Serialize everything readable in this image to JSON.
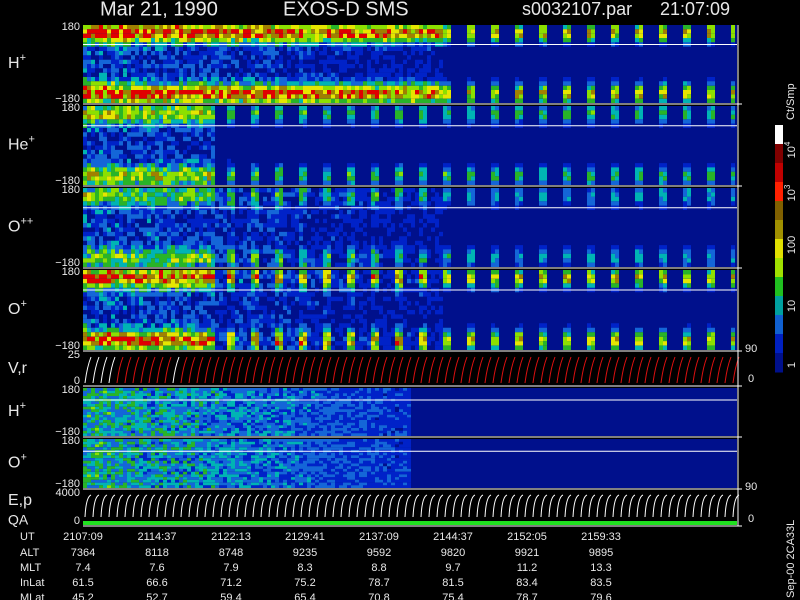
{
  "header": {
    "date": "Mar 21, 1990",
    "mission": "EXOS-D SMS",
    "file": "s0032107.par",
    "time": "21:07:09"
  },
  "panels": [
    {
      "name": "H",
      "sup": "+",
      "ymax": "180",
      "ymin": "−180"
    },
    {
      "name": "He",
      "sup": "+",
      "ymax": "180",
      "ymin": "−180"
    },
    {
      "name": "O",
      "sup": "++",
      "ymax": "180",
      "ymin": "−180"
    },
    {
      "name": "O",
      "sup": "+",
      "ymax": "180",
      "ymin": "−180"
    },
    {
      "name": "V,r",
      "ymax": "25",
      "ymin": "0",
      "right": [
        "90",
        "0"
      ]
    },
    {
      "name": "H",
      "sup": "+",
      "ymax": "180",
      "ymin": "−180"
    },
    {
      "name": "O",
      "sup": "+",
      "ymax": "180",
      "ymin": "−180"
    },
    {
      "name": "E,p",
      "name2": "QA",
      "ymax": "4000",
      "ymin": "0",
      "right": [
        "90",
        "0"
      ]
    }
  ],
  "colorbar": {
    "unit": "Ct/Smp",
    "ticks": [
      {
        "base": "10",
        "exp": "4"
      },
      {
        "base": "10",
        "exp": "3"
      },
      {
        "base": "100"
      },
      {
        "base": "10"
      },
      {
        "base": "1"
      }
    ]
  },
  "table": {
    "rows": [
      {
        "label": "UT",
        "cells": [
          "2107:09",
          "2114:37",
          "2122:13",
          "2129:41",
          "2137:09",
          "2144:37",
          "2152:05",
          "2159:33"
        ]
      },
      {
        "label": "ALT",
        "cells": [
          "7364",
          "8118",
          "8748",
          "9235",
          "9592",
          "9820",
          "9921",
          "9895"
        ]
      },
      {
        "label": "MLT",
        "cells": [
          "7.4",
          "7.6",
          "7.9",
          "8.3",
          "8.8",
          "9.7",
          "11.2",
          "13.3"
        ]
      },
      {
        "label": "InLat",
        "cells": [
          "61.5",
          "66.6",
          "71.2",
          "75.2",
          "78.7",
          "81.5",
          "83.4",
          "83.5"
        ]
      },
      {
        "label": "MLat",
        "cells": [
          "45.2",
          "52.7",
          "59.4",
          "65.4",
          "70.8",
          "75.4",
          "78.7",
          "79.6"
        ]
      }
    ]
  },
  "footer": "Sep-00 2CA33L"
}
